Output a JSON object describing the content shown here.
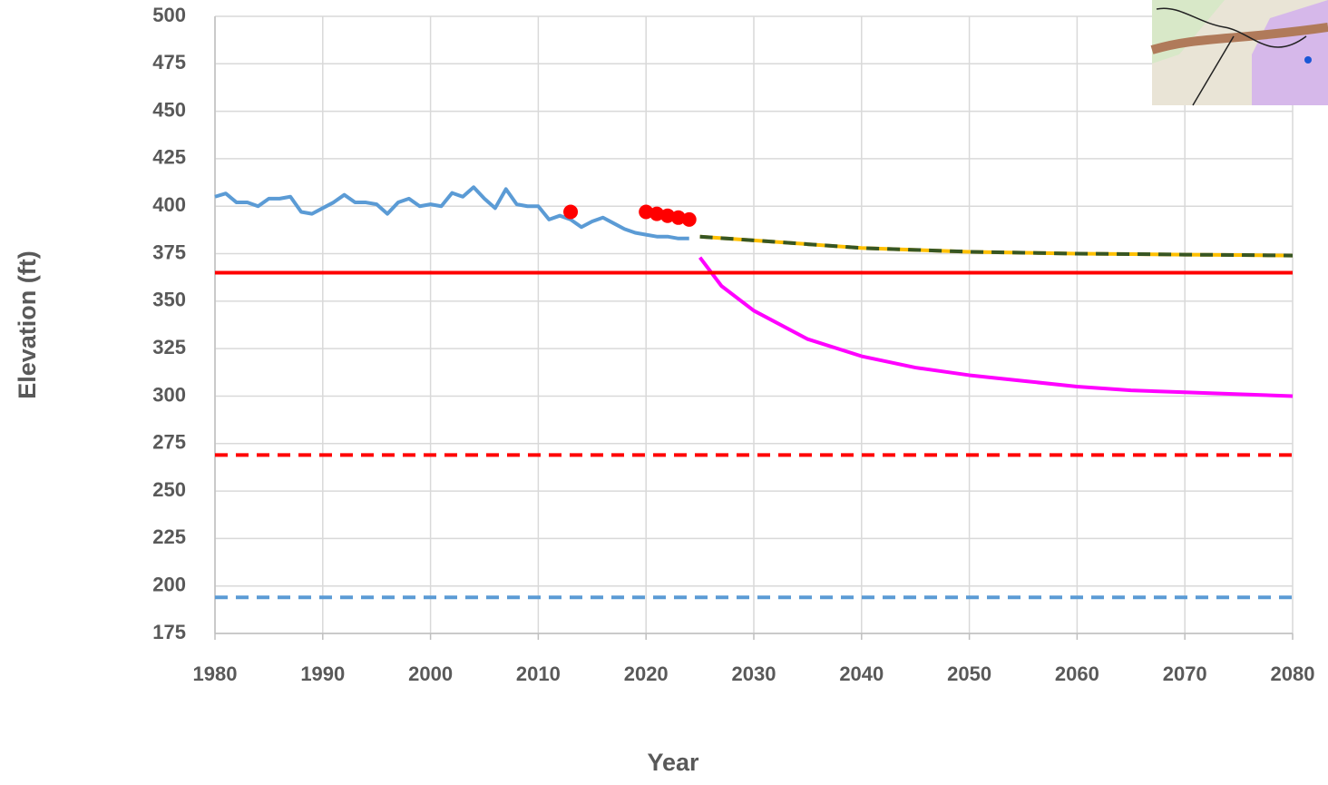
{
  "chart_data": {
    "type": "line",
    "x_label": "Year",
    "y_label": "Elevation (ft)",
    "xlim": [
      1980,
      2080
    ],
    "ylim": [
      175,
      500
    ],
    "xticks": [
      1980,
      1990,
      2000,
      2010,
      2020,
      2030,
      2040,
      2050,
      2060,
      2070,
      2080
    ],
    "yticks": [
      175,
      200,
      225,
      250,
      275,
      300,
      325,
      350,
      375,
      400,
      425,
      450,
      475,
      500
    ],
    "grid": true,
    "series": [
      {
        "color": "#5b9bd5",
        "mode": "line",
        "dash": false,
        "x": [
          1980,
          1981,
          1982,
          1983,
          1984,
          1985,
          1986,
          1987,
          1988,
          1989,
          1990,
          1991,
          1992,
          1993,
          1994,
          1995,
          1996,
          1997,
          1998,
          1999,
          2000,
          2001,
          2002,
          2003,
          2004,
          2005,
          2006,
          2007,
          2008,
          2009,
          2010,
          2011,
          2012,
          2013,
          2014,
          2015,
          2016,
          2017,
          2018,
          2019,
          2020,
          2021,
          2022,
          2023,
          2024
        ],
        "values": [
          405,
          406.7,
          402,
          402,
          400,
          404,
          404,
          405,
          397,
          396,
          399,
          402,
          406,
          402,
          402,
          401,
          396,
          402,
          404,
          400,
          401,
          400,
          407,
          405,
          410,
          404,
          399,
          409,
          401,
          400,
          400,
          393,
          395,
          393,
          389,
          392,
          394,
          391,
          388,
          386,
          385,
          384,
          384,
          383,
          383
        ]
      },
      {
        "color": "#ff0000",
        "mode": "markers",
        "dash": false,
        "x": [
          2013,
          2020,
          2021,
          2022,
          2023,
          2024
        ],
        "values": [
          397,
          397,
          396,
          395,
          394,
          393
        ]
      },
      {
        "color": "#ffc000",
        "mode": "line",
        "dash": false,
        "x": [
          2025,
          2030,
          2035,
          2040,
          2045,
          2050,
          2055,
          2060,
          2065,
          2070,
          2075,
          2080
        ],
        "values": [
          384,
          382,
          380,
          378,
          377,
          376,
          375.5,
          375,
          374.8,
          374.5,
          374.3,
          374
        ]
      },
      {
        "color": "#375623",
        "mode": "line",
        "dash": true,
        "x": [
          2025,
          2030,
          2035,
          2040,
          2045,
          2050,
          2055,
          2060,
          2065,
          2070,
          2075,
          2080
        ],
        "values": [
          384,
          382,
          380,
          378,
          377,
          376,
          375.5,
          375,
          374.8,
          374.5,
          374.3,
          374
        ]
      },
      {
        "color": "#ff00ff",
        "mode": "line",
        "dash": false,
        "x": [
          2025,
          2027,
          2030,
          2035,
          2040,
          2045,
          2050,
          2055,
          2060,
          2065,
          2070,
          2075,
          2080
        ],
        "values": [
          373,
          358,
          345,
          330,
          321,
          315,
          311,
          308,
          305,
          303,
          302,
          301,
          300
        ]
      },
      {
        "color": "#ff0000",
        "mode": "line",
        "dash": false,
        "x": [
          1980,
          2080
        ],
        "values": [
          365,
          365
        ]
      },
      {
        "color": "#ff0000",
        "mode": "line",
        "dash": true,
        "x": [
          1980,
          2080
        ],
        "values": [
          269,
          269
        ]
      },
      {
        "color": "#5b9bd5",
        "mode": "line",
        "dash": true,
        "x": [
          1980,
          2080
        ],
        "values": [
          194,
          194
        ]
      }
    ]
  }
}
